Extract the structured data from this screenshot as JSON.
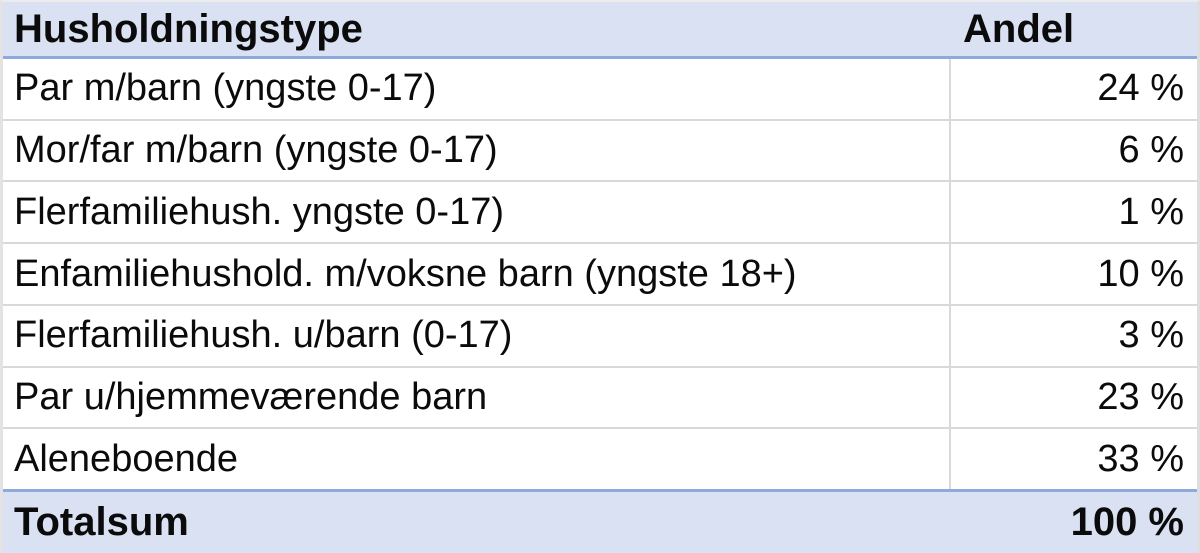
{
  "chart_data": {
    "type": "table",
    "columns": [
      "Husholdningstype",
      "Andel"
    ],
    "categories": [
      "Par m/barn (yngste 0-17)",
      "Mor/far m/barn (yngste 0-17)",
      "Flerfamiliehush. yngste 0-17)",
      "Enfamiliehushold. m/voksne barn (yngste 18+)",
      "Flerfamiliehush. u/barn (0-17)",
      "Par u/hjemmeværende barn",
      "Aleneboende"
    ],
    "values_percent": [
      24,
      6,
      1,
      10,
      3,
      23,
      33
    ],
    "total_label": "Totalsum",
    "total_percent": 100,
    "value_unit": "%"
  },
  "table": {
    "header": {
      "type_label": "Husholdningstype",
      "value_label": "Andel"
    },
    "rows": [
      {
        "label": "Par m/barn (yngste 0-17)",
        "value": "24 %"
      },
      {
        "label": "Mor/far m/barn (yngste 0-17)",
        "value": "6 %"
      },
      {
        "label": "Flerfamiliehush. yngste 0-17)",
        "value": "1 %"
      },
      {
        "label": "Enfamiliehushold. m/voksne barn (yngste 18+)",
        "value": "10 %"
      },
      {
        "label": "Flerfamiliehush. u/barn (0-17)",
        "value": "3 %"
      },
      {
        "label": "Par u/hjemmeværende barn",
        "value": "23 %"
      },
      {
        "label": "Aleneboende",
        "value": "33 %"
      }
    ],
    "total": {
      "label": "Totalsum",
      "value": "100 %"
    }
  },
  "colors": {
    "header_bg": "#d9e1f2",
    "accent_line": "#8ea9db",
    "row_divider": "#d9d9d9",
    "text": "#000000"
  }
}
